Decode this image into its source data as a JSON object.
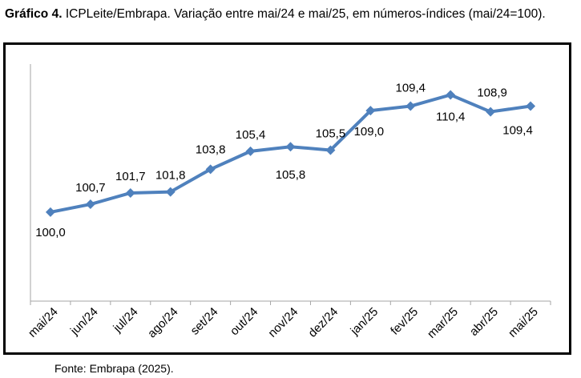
{
  "caption": {
    "label": "Gráfico 4.",
    "text": "ICPLeite/Embrapa. Variação entre mai/24 e mai/25, em números-índices (mai/24=100)."
  },
  "source": "Fonte: Embrapa (2025).",
  "colors": {
    "line": "#4F81BD",
    "axis": "#A6A6A6"
  },
  "chart_data": {
    "type": "line",
    "title": "",
    "xlabel": "",
    "ylabel": "",
    "categories": [
      "mai/24",
      "jun/24",
      "jul/24",
      "ago/24",
      "set/24",
      "out/24",
      "nov/24",
      "dez/24",
      "jan/25",
      "fev/25",
      "mar/25",
      "abr/25",
      "mai/25"
    ],
    "series": [
      {
        "values": [
          100.0,
          100.7,
          101.7,
          101.8,
          103.8,
          105.4,
          105.8,
          105.5,
          109.0,
          109.4,
          110.4,
          108.9,
          109.4
        ]
      }
    ],
    "data_labels": [
      "100,0",
      "100,7",
      "101,7",
      "101,8",
      "103,8",
      "105,4",
      "105,8",
      "105,5",
      "109,0",
      "109,4",
      "110,4",
      "108,9",
      "109,4"
    ],
    "ylim": [
      99,
      111
    ],
    "grid": false,
    "legend": "none"
  }
}
